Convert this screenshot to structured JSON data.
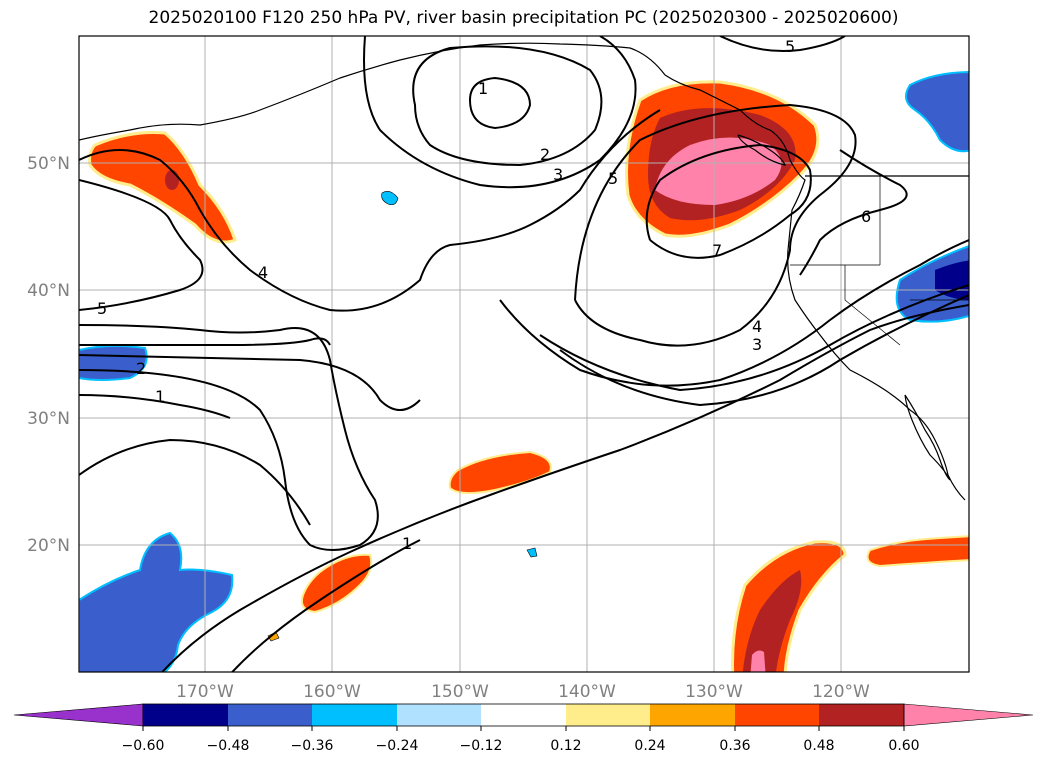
{
  "title": "2025020100 F120 250 hPa PV, river basin precipitation PC (2025020300 - 2025020600)",
  "map": {
    "lat_labels": [
      "50°N",
      "40°N",
      "30°N",
      "20°N"
    ],
    "lon_labels": [
      "170°W",
      "160°W",
      "150°W",
      "140°W",
      "130°W",
      "120°W"
    ],
    "pv_contour_labels": [
      "1",
      "2",
      "3",
      "5",
      "5",
      "4",
      "6",
      "7",
      "5",
      "2",
      "1",
      "4",
      "3",
      "1"
    ]
  },
  "colorbar": {
    "ticks": [
      "−0.60",
      "−0.48",
      "−0.36",
      "−0.24",
      "−0.12",
      "0.12",
      "0.24",
      "0.36",
      "0.48",
      "0.60"
    ],
    "colors": [
      "#9932cc",
      "#00008b",
      "#3a5fcd",
      "#00bfff",
      "#b0e2ff",
      "#ffffff",
      "#ffec8b",
      "#ffa500",
      "#ff4500",
      "#b22222",
      "#ff82ab"
    ]
  },
  "chart_data": {
    "type": "heatmap",
    "title": "2025020100 F120 250 hPa PV, river basin precipitation PC (2025020300 - 2025020600)",
    "lon_range": [
      -180,
      -110
    ],
    "lat_range": [
      10,
      60
    ],
    "grid": true,
    "colorbar_levels": [
      -0.6,
      -0.48,
      -0.36,
      -0.24,
      -0.12,
      0.12,
      0.24,
      0.36,
      0.48,
      0.6
    ],
    "pv_contour_levels": [
      1,
      2,
      3,
      4,
      5,
      6,
      7
    ]
  }
}
